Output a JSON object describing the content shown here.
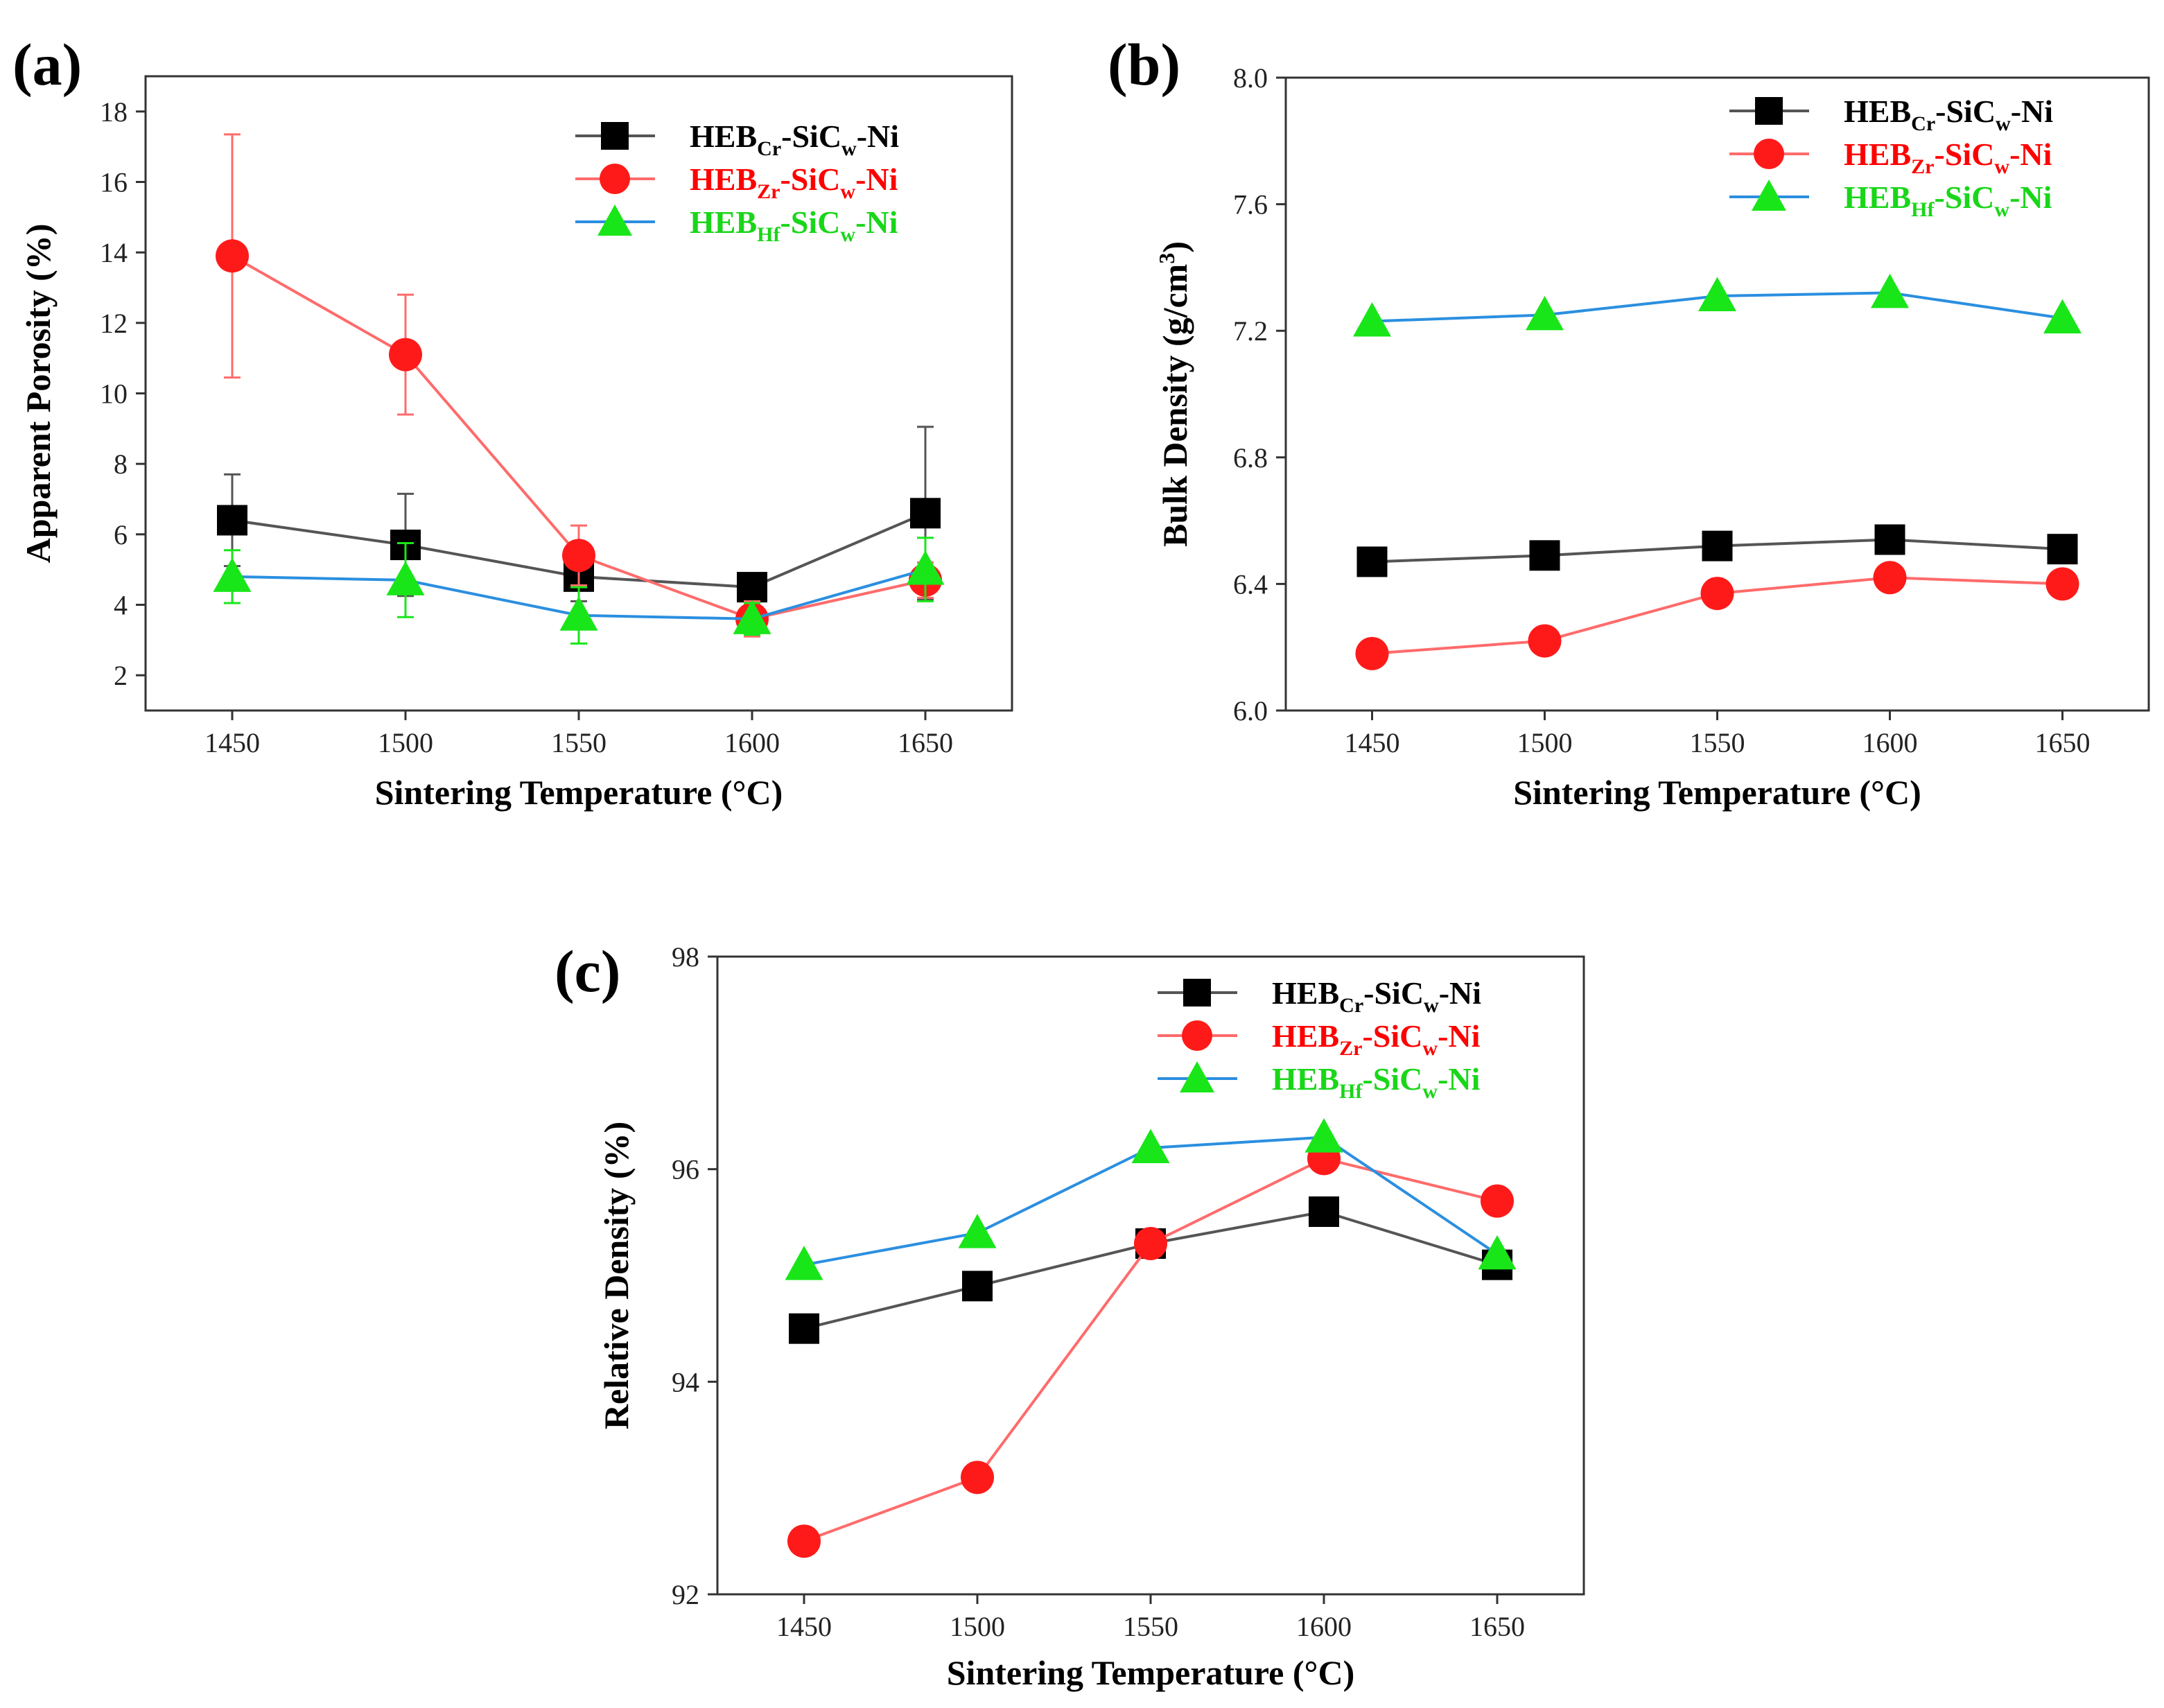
{
  "chart_data": [
    {
      "type": "line",
      "panel_label": "(a)",
      "title": "",
      "xlabel": "Sintering Temperature (°C)",
      "ylabel": "Apparent Porosity (%)",
      "x": [
        1450,
        1500,
        1550,
        1600,
        1650
      ],
      "x_ticks": [
        "1450",
        "1500",
        "1550",
        "1600",
        "1650"
      ],
      "xlim": [
        1425,
        1675
      ],
      "ylim": [
        1,
        19
      ],
      "y_ticks": [
        "2",
        "4",
        "6",
        "8",
        "10",
        "12",
        "14",
        "16",
        "18"
      ],
      "grid": false,
      "legend_position": "top-right",
      "series": [
        {
          "name": "HEBCr-SiCw-Ni",
          "legend": {
            "base": "HEB",
            "sub1": "Cr",
            "mid": "-SiC",
            "sub2": "w",
            "tail": "-Ni"
          },
          "line_color": "#555555",
          "marker_color": "#000000",
          "label_color": "#000000",
          "marker": "square",
          "values": [
            6.4,
            5.7,
            4.8,
            4.5,
            6.6
          ],
          "errors": [
            1.3,
            1.45,
            0.7,
            0.2,
            2.45
          ]
        },
        {
          "name": "HEBZr-SiCw-Ni",
          "legend": {
            "base": "HEB",
            "sub1": "Zr",
            "mid": "-SiC",
            "sub2": "w",
            "tail": "-Ni"
          },
          "line_color": "#ff6b6b",
          "marker_color": "#ff1a1a",
          "label_color": "#ff0000",
          "marker": "circle",
          "values": [
            13.9,
            11.1,
            5.4,
            3.6,
            4.7
          ],
          "errors": [
            3.45,
            1.7,
            0.85,
            0.5,
            0.5
          ]
        },
        {
          "name": "HEBHf-SiCw-Ni",
          "legend": {
            "base": "HEB",
            "sub1": "Hf",
            "mid": "-SiC",
            "sub2": "w",
            "tail": "-Ni"
          },
          "line_color": "#2b8fe0",
          "marker_color": "#19e619",
          "label_color": "#19d619",
          "marker": "triangle",
          "values": [
            4.8,
            4.7,
            3.7,
            3.6,
            5.0
          ],
          "errors": [
            0.75,
            1.05,
            0.8,
            0.45,
            0.9
          ]
        }
      ]
    },
    {
      "type": "line",
      "panel_label": "(b)",
      "title": "",
      "xlabel": "Sintering Temperature (°C)",
      "ylabel": "Bulk Density (g/cm",
      "ylabel_sup": "3",
      "ylabel_tail": ")",
      "x": [
        1450,
        1500,
        1550,
        1600,
        1650
      ],
      "x_ticks": [
        "1450",
        "1500",
        "1550",
        "1600",
        "1650"
      ],
      "xlim": [
        1425,
        1675
      ],
      "ylim": [
        6.0,
        8.0
      ],
      "y_ticks": [
        "6.0",
        "6.4",
        "6.8",
        "7.2",
        "7.6",
        "8.0"
      ],
      "grid": false,
      "legend_position": "top-right",
      "series": [
        {
          "name": "HEBCr-SiCw-Ni",
          "legend": {
            "base": "HEB",
            "sub1": "Cr",
            "mid": "-SiC",
            "sub2": "w",
            "tail": "-Ni"
          },
          "line_color": "#555555",
          "marker_color": "#000000",
          "label_color": "#000000",
          "marker": "square",
          "values": [
            6.47,
            6.49,
            6.52,
            6.54,
            6.51
          ]
        },
        {
          "name": "HEBZr-SiCw-Ni",
          "legend": {
            "base": "HEB",
            "sub1": "Zr",
            "mid": "-SiC",
            "sub2": "w",
            "tail": "-Ni"
          },
          "line_color": "#ff6b6b",
          "marker_color": "#ff1a1a",
          "label_color": "#ff0000",
          "marker": "circle",
          "values": [
            6.18,
            6.22,
            6.37,
            6.42,
            6.4
          ]
        },
        {
          "name": "HEBHf-SiCw-Ni",
          "legend": {
            "base": "HEB",
            "sub1": "Hf",
            "mid": "-SiC",
            "sub2": "w",
            "tail": "-Ni"
          },
          "line_color": "#2b8fe0",
          "marker_color": "#19e619",
          "label_color": "#19d619",
          "marker": "triangle",
          "values": [
            7.23,
            7.25,
            7.31,
            7.32,
            7.24
          ]
        }
      ]
    },
    {
      "type": "line",
      "panel_label": "(c)",
      "title": "",
      "xlabel": "Sintering Temperature (°C)",
      "ylabel": "Relative Density (%)",
      "x": [
        1450,
        1500,
        1550,
        1600,
        1650
      ],
      "x_ticks": [
        "1450",
        "1500",
        "1550",
        "1600",
        "1650"
      ],
      "xlim": [
        1425,
        1675
      ],
      "ylim": [
        92,
        98
      ],
      "y_ticks": [
        "92",
        "94",
        "96",
        "98"
      ],
      "grid": false,
      "legend_position": "top-right",
      "series": [
        {
          "name": "HEBCr-SiCw-Ni",
          "legend": {
            "base": "HEB",
            "sub1": "Cr",
            "mid": "-SiC",
            "sub2": "w",
            "tail": "-Ni"
          },
          "line_color": "#555555",
          "marker_color": "#000000",
          "label_color": "#000000",
          "marker": "square",
          "values": [
            94.5,
            94.9,
            95.3,
            95.6,
            95.1
          ]
        },
        {
          "name": "HEBZr-SiCw-Ni",
          "legend": {
            "base": "HEB",
            "sub1": "Zr",
            "mid": "-SiC",
            "sub2": "w",
            "tail": "-Ni"
          },
          "line_color": "#ff6b6b",
          "marker_color": "#ff1a1a",
          "label_color": "#ff0000",
          "marker": "circle",
          "values": [
            92.5,
            93.1,
            95.3,
            96.1,
            95.7
          ]
        },
        {
          "name": "HEBHf-SiCw-Ni",
          "legend": {
            "base": "HEB",
            "sub1": "Hf",
            "mid": "-SiC",
            "sub2": "w",
            "tail": "-Ni"
          },
          "line_color": "#2b8fe0",
          "marker_color": "#19e619",
          "label_color": "#19d619",
          "marker": "triangle",
          "values": [
            95.1,
            95.4,
            96.2,
            96.3,
            95.2
          ]
        }
      ]
    }
  ]
}
